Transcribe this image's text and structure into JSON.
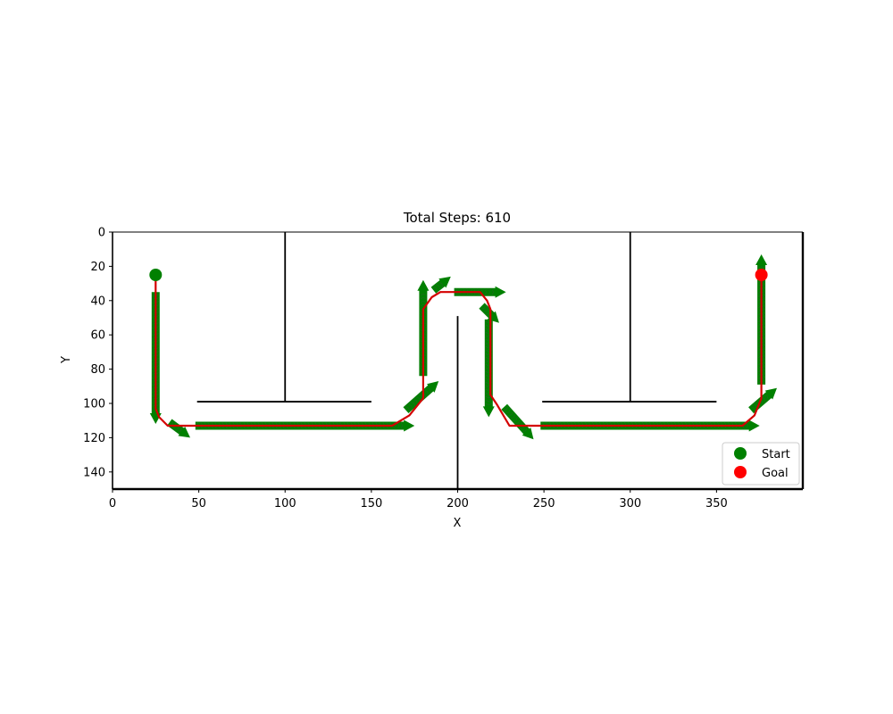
{
  "chart_data": {
    "type": "scatter",
    "title": "Total Steps: 610",
    "xlabel": "X",
    "ylabel": "Y",
    "xlim": [
      0,
      400
    ],
    "ylim": [
      150,
      0
    ],
    "y_inverted": true,
    "xticks": [
      0,
      50,
      100,
      150,
      200,
      250,
      300,
      350
    ],
    "yticks": [
      0,
      20,
      40,
      60,
      80,
      100,
      120,
      140
    ],
    "grid": false,
    "legend_position": "lower-right",
    "colors": {
      "path": "#d40000",
      "arrows": "#008000",
      "start": "#008000",
      "goal": "#ff0000",
      "walls": "#000000"
    },
    "walls": [
      {
        "x": [
          100,
          100
        ],
        "y": [
          0,
          99
        ]
      },
      {
        "x": [
          49,
          150
        ],
        "y": [
          99,
          99
        ]
      },
      {
        "x": [
          200,
          200
        ],
        "y": [
          49,
          150
        ]
      },
      {
        "x": [
          300,
          300
        ],
        "y": [
          0,
          99
        ]
      },
      {
        "x": [
          249,
          350
        ],
        "y": [
          99,
          99
        ]
      }
    ],
    "path": {
      "x": [
        25,
        25,
        27,
        32,
        162,
        172,
        180,
        180,
        185,
        190,
        213,
        217,
        219,
        219,
        223,
        230,
        250,
        365,
        372,
        376,
        376
      ],
      "y": [
        25,
        103,
        108,
        113,
        113,
        107,
        97,
        45,
        38,
        35,
        35,
        40,
        45,
        95,
        101,
        113,
        113,
        113,
        107,
        97,
        25
      ]
    },
    "arrow_segments": [
      {
        "from": [
          25,
          35
        ],
        "to": [
          25,
          112
        ],
        "direction": "vertical"
      },
      {
        "from": [
          33,
          111
        ],
        "to": [
          45,
          120
        ],
        "direction": "diagonal"
      },
      {
        "from": [
          48,
          113
        ],
        "to": [
          175,
          113
        ],
        "direction": "horizontal"
      },
      {
        "from": [
          170,
          104
        ],
        "to": [
          189,
          87
        ],
        "direction": "diagonal"
      },
      {
        "from": [
          180,
          84
        ],
        "to": [
          180,
          28
        ],
        "direction": "vertical"
      },
      {
        "from": [
          186,
          34
        ],
        "to": [
          196,
          26
        ],
        "direction": "diagonal"
      },
      {
        "from": [
          198,
          35
        ],
        "to": [
          228,
          35
        ],
        "direction": "horizontal"
      },
      {
        "from": [
          214,
          43
        ],
        "to": [
          224,
          53
        ],
        "direction": "diagonal"
      },
      {
        "from": [
          218,
          51
        ],
        "to": [
          218,
          108
        ],
        "direction": "vertical"
      },
      {
        "from": [
          227,
          102
        ],
        "to": [
          244,
          121
        ],
        "direction": "diagonal"
      },
      {
        "from": [
          248,
          113
        ],
        "to": [
          375,
          113
        ],
        "direction": "horizontal"
      },
      {
        "from": [
          370,
          104
        ],
        "to": [
          385,
          91
        ],
        "direction": "diagonal"
      },
      {
        "from": [
          376,
          89
        ],
        "to": [
          376,
          13
        ],
        "direction": "vertical"
      }
    ],
    "series": [
      {
        "name": "Start",
        "x": [
          25
        ],
        "y": [
          25
        ]
      },
      {
        "name": "Goal",
        "x": [
          376
        ],
        "y": [
          25
        ]
      }
    ]
  }
}
